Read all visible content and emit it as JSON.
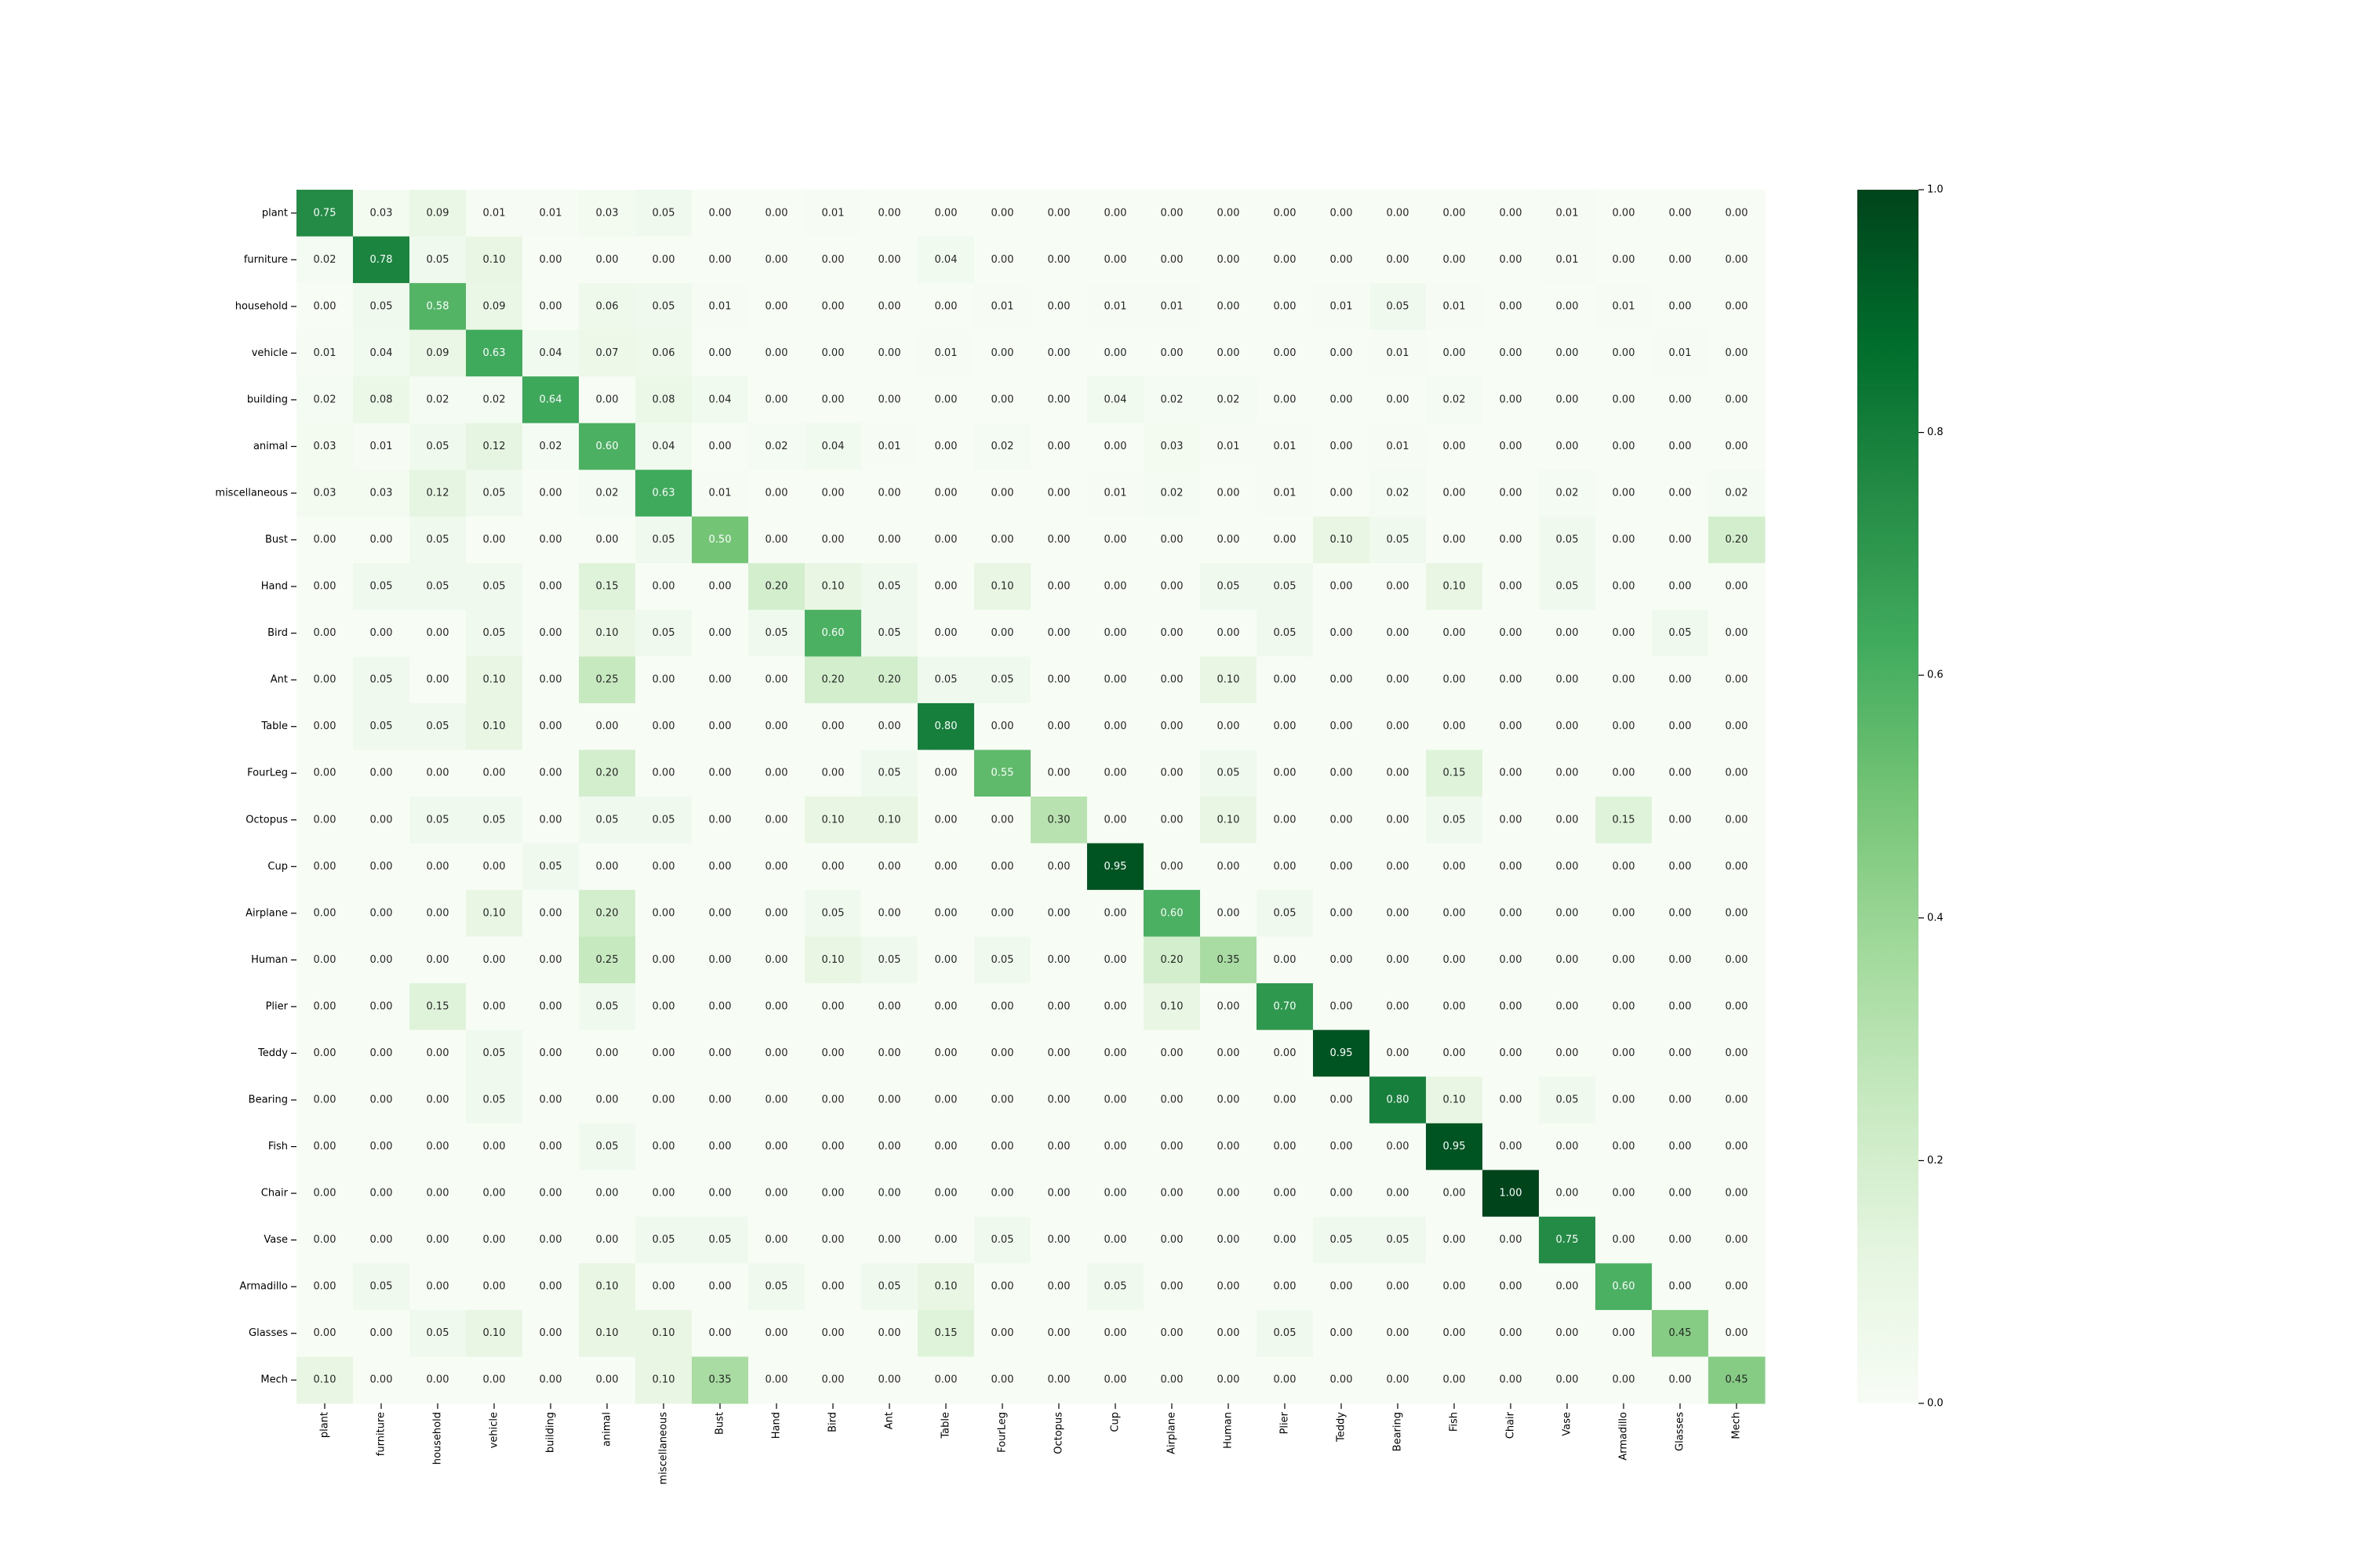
{
  "chart_data": {
    "type": "heatmap",
    "row_labels": [
      "plant",
      "furniture",
      "household",
      "vehicle",
      "building",
      "animal",
      "miscellaneous",
      "Bust",
      "Hand",
      "Bird",
      "Ant",
      "Table",
      "FourLeg",
      "Octopus",
      "Cup",
      "Airplane",
      "Human",
      "Plier",
      "Teddy",
      "Bearing",
      "Fish",
      "Chair",
      "Vase",
      "Armadillo",
      "Glasses",
      "Mech"
    ],
    "col_labels": [
      "plant",
      "furniture",
      "household",
      "vehicle",
      "building",
      "animal",
      "miscellaneous",
      "Bust",
      "Hand",
      "Bird",
      "Ant",
      "Table",
      "FourLeg",
      "Octopus",
      "Cup",
      "Airplane",
      "Human",
      "Plier",
      "Teddy",
      "Bearing",
      "Fish",
      "Chair",
      "Vase",
      "Armadillo",
      "Glasses",
      "Mech"
    ],
    "values": [
      [
        0.75,
        0.03,
        0.09,
        0.01,
        0.01,
        0.03,
        0.05,
        0.0,
        0.0,
        0.01,
        0.0,
        0.0,
        0.0,
        0.0,
        0.0,
        0.0,
        0.0,
        0.0,
        0.0,
        0.0,
        0.0,
        0.0,
        0.01,
        0.0,
        0.0,
        0.0
      ],
      [
        0.02,
        0.78,
        0.05,
        0.1,
        0.0,
        0.0,
        0.0,
        0.0,
        0.0,
        0.0,
        0.0,
        0.04,
        0.0,
        0.0,
        0.0,
        0.0,
        0.0,
        0.0,
        0.0,
        0.0,
        0.0,
        0.0,
        0.01,
        0.0,
        0.0,
        0.0
      ],
      [
        0.0,
        0.05,
        0.58,
        0.09,
        0.0,
        0.06,
        0.05,
        0.01,
        0.0,
        0.0,
        0.0,
        0.0,
        0.01,
        0.0,
        0.01,
        0.01,
        0.0,
        0.0,
        0.01,
        0.05,
        0.01,
        0.0,
        0.0,
        0.01,
        0.0,
        0.0
      ],
      [
        0.01,
        0.04,
        0.09,
        0.63,
        0.04,
        0.07,
        0.06,
        0.0,
        0.0,
        0.0,
        0.0,
        0.01,
        0.0,
        0.0,
        0.0,
        0.0,
        0.0,
        0.0,
        0.0,
        0.01,
        0.0,
        0.0,
        0.0,
        0.0,
        0.01,
        0.0
      ],
      [
        0.02,
        0.08,
        0.02,
        0.02,
        0.64,
        0.0,
        0.08,
        0.04,
        0.0,
        0.0,
        0.0,
        0.0,
        0.0,
        0.0,
        0.04,
        0.02,
        0.02,
        0.0,
        0.0,
        0.0,
        0.02,
        0.0,
        0.0,
        0.0,
        0.0,
        0.0
      ],
      [
        0.03,
        0.01,
        0.05,
        0.12,
        0.02,
        0.6,
        0.04,
        0.0,
        0.02,
        0.04,
        0.01,
        0.0,
        0.02,
        0.0,
        0.0,
        0.03,
        0.01,
        0.01,
        0.0,
        0.01,
        0.0,
        0.0,
        0.0,
        0.0,
        0.0,
        0.0
      ],
      [
        0.03,
        0.03,
        0.12,
        0.05,
        0.0,
        0.02,
        0.63,
        0.01,
        0.0,
        0.0,
        0.0,
        0.0,
        0.0,
        0.0,
        0.01,
        0.02,
        0.0,
        0.01,
        0.0,
        0.02,
        0.0,
        0.0,
        0.02,
        0.0,
        0.0,
        0.02
      ],
      [
        0.0,
        0.0,
        0.05,
        0.0,
        0.0,
        0.0,
        0.05,
        0.5,
        0.0,
        0.0,
        0.0,
        0.0,
        0.0,
        0.0,
        0.0,
        0.0,
        0.0,
        0.0,
        0.1,
        0.05,
        0.0,
        0.0,
        0.05,
        0.0,
        0.0,
        0.2
      ],
      [
        0.0,
        0.05,
        0.05,
        0.05,
        0.0,
        0.15,
        0.0,
        0.0,
        0.2,
        0.1,
        0.05,
        0.0,
        0.1,
        0.0,
        0.0,
        0.0,
        0.05,
        0.05,
        0.0,
        0.0,
        0.1,
        0.0,
        0.05,
        0.0,
        0.0,
        0.0
      ],
      [
        0.0,
        0.0,
        0.0,
        0.05,
        0.0,
        0.1,
        0.05,
        0.0,
        0.05,
        0.6,
        0.05,
        0.0,
        0.0,
        0.0,
        0.0,
        0.0,
        0.0,
        0.05,
        0.0,
        0.0,
        0.0,
        0.0,
        0.0,
        0.0,
        0.05,
        0.0
      ],
      [
        0.0,
        0.05,
        0.0,
        0.1,
        0.0,
        0.25,
        0.0,
        0.0,
        0.0,
        0.2,
        0.2,
        0.05,
        0.05,
        0.0,
        0.0,
        0.0,
        0.1,
        0.0,
        0.0,
        0.0,
        0.0,
        0.0,
        0.0,
        0.0,
        0.0,
        0.0
      ],
      [
        0.0,
        0.05,
        0.05,
        0.1,
        0.0,
        0.0,
        0.0,
        0.0,
        0.0,
        0.0,
        0.0,
        0.8,
        0.0,
        0.0,
        0.0,
        0.0,
        0.0,
        0.0,
        0.0,
        0.0,
        0.0,
        0.0,
        0.0,
        0.0,
        0.0,
        0.0
      ],
      [
        0.0,
        0.0,
        0.0,
        0.0,
        0.0,
        0.2,
        0.0,
        0.0,
        0.0,
        0.0,
        0.05,
        0.0,
        0.55,
        0.0,
        0.0,
        0.0,
        0.05,
        0.0,
        0.0,
        0.0,
        0.15,
        0.0,
        0.0,
        0.0,
        0.0,
        0.0
      ],
      [
        0.0,
        0.0,
        0.05,
        0.05,
        0.0,
        0.05,
        0.05,
        0.0,
        0.0,
        0.1,
        0.1,
        0.0,
        0.0,
        0.3,
        0.0,
        0.0,
        0.1,
        0.0,
        0.0,
        0.0,
        0.05,
        0.0,
        0.0,
        0.15,
        0.0,
        0.0
      ],
      [
        0.0,
        0.0,
        0.0,
        0.0,
        0.05,
        0.0,
        0.0,
        0.0,
        0.0,
        0.0,
        0.0,
        0.0,
        0.0,
        0.0,
        0.95,
        0.0,
        0.0,
        0.0,
        0.0,
        0.0,
        0.0,
        0.0,
        0.0,
        0.0,
        0.0,
        0.0
      ],
      [
        0.0,
        0.0,
        0.0,
        0.1,
        0.0,
        0.2,
        0.0,
        0.0,
        0.0,
        0.05,
        0.0,
        0.0,
        0.0,
        0.0,
        0.0,
        0.6,
        0.0,
        0.05,
        0.0,
        0.0,
        0.0,
        0.0,
        0.0,
        0.0,
        0.0,
        0.0
      ],
      [
        0.0,
        0.0,
        0.0,
        0.0,
        0.0,
        0.25,
        0.0,
        0.0,
        0.0,
        0.1,
        0.05,
        0.0,
        0.05,
        0.0,
        0.0,
        0.2,
        0.35,
        0.0,
        0.0,
        0.0,
        0.0,
        0.0,
        0.0,
        0.0,
        0.0,
        0.0
      ],
      [
        0.0,
        0.0,
        0.15,
        0.0,
        0.0,
        0.05,
        0.0,
        0.0,
        0.0,
        0.0,
        0.0,
        0.0,
        0.0,
        0.0,
        0.0,
        0.1,
        0.0,
        0.7,
        0.0,
        0.0,
        0.0,
        0.0,
        0.0,
        0.0,
        0.0,
        0.0
      ],
      [
        0.0,
        0.0,
        0.0,
        0.05,
        0.0,
        0.0,
        0.0,
        0.0,
        0.0,
        0.0,
        0.0,
        0.0,
        0.0,
        0.0,
        0.0,
        0.0,
        0.0,
        0.0,
        0.95,
        0.0,
        0.0,
        0.0,
        0.0,
        0.0,
        0.0,
        0.0
      ],
      [
        0.0,
        0.0,
        0.0,
        0.05,
        0.0,
        0.0,
        0.0,
        0.0,
        0.0,
        0.0,
        0.0,
        0.0,
        0.0,
        0.0,
        0.0,
        0.0,
        0.0,
        0.0,
        0.0,
        0.8,
        0.1,
        0.0,
        0.05,
        0.0,
        0.0,
        0.0
      ],
      [
        0.0,
        0.0,
        0.0,
        0.0,
        0.0,
        0.05,
        0.0,
        0.0,
        0.0,
        0.0,
        0.0,
        0.0,
        0.0,
        0.0,
        0.0,
        0.0,
        0.0,
        0.0,
        0.0,
        0.0,
        0.95,
        0.0,
        0.0,
        0.0,
        0.0,
        0.0
      ],
      [
        0.0,
        0.0,
        0.0,
        0.0,
        0.0,
        0.0,
        0.0,
        0.0,
        0.0,
        0.0,
        0.0,
        0.0,
        0.0,
        0.0,
        0.0,
        0.0,
        0.0,
        0.0,
        0.0,
        0.0,
        0.0,
        1.0,
        0.0,
        0.0,
        0.0,
        0.0
      ],
      [
        0.0,
        0.0,
        0.0,
        0.0,
        0.0,
        0.0,
        0.05,
        0.05,
        0.0,
        0.0,
        0.0,
        0.0,
        0.05,
        0.0,
        0.0,
        0.0,
        0.0,
        0.0,
        0.05,
        0.05,
        0.0,
        0.0,
        0.75,
        0.0,
        0.0,
        0.0
      ],
      [
        0.0,
        0.05,
        0.0,
        0.0,
        0.0,
        0.1,
        0.0,
        0.0,
        0.05,
        0.0,
        0.05,
        0.1,
        0.0,
        0.0,
        0.05,
        0.0,
        0.0,
        0.0,
        0.0,
        0.0,
        0.0,
        0.0,
        0.0,
        0.6,
        0.0,
        0.0
      ],
      [
        0.0,
        0.0,
        0.05,
        0.1,
        0.0,
        0.1,
        0.1,
        0.0,
        0.0,
        0.0,
        0.0,
        0.15,
        0.0,
        0.0,
        0.0,
        0.0,
        0.0,
        0.05,
        0.0,
        0.0,
        0.0,
        0.0,
        0.0,
        0.0,
        0.45,
        0.0
      ],
      [
        0.1,
        0.0,
        0.0,
        0.0,
        0.0,
        0.0,
        0.1,
        0.35,
        0.0,
        0.0,
        0.0,
        0.0,
        0.0,
        0.0,
        0.0,
        0.0,
        0.0,
        0.0,
        0.0,
        0.0,
        0.0,
        0.0,
        0.0,
        0.0,
        0.0,
        0.45
      ]
    ],
    "value_range": [
      0.0,
      1.0
    ],
    "colormap": "Greens",
    "colorbar": {
      "ticks": [
        0.0,
        0.2,
        0.4,
        0.6,
        0.8,
        1.0
      ],
      "tick_labels": [
        "0.0",
        "0.2",
        "0.4",
        "0.6",
        "0.8",
        "1.0"
      ]
    },
    "annotation_format": "0.00",
    "colors": {
      "low": "#f7fcf5",
      "high": "#00441b"
    }
  }
}
